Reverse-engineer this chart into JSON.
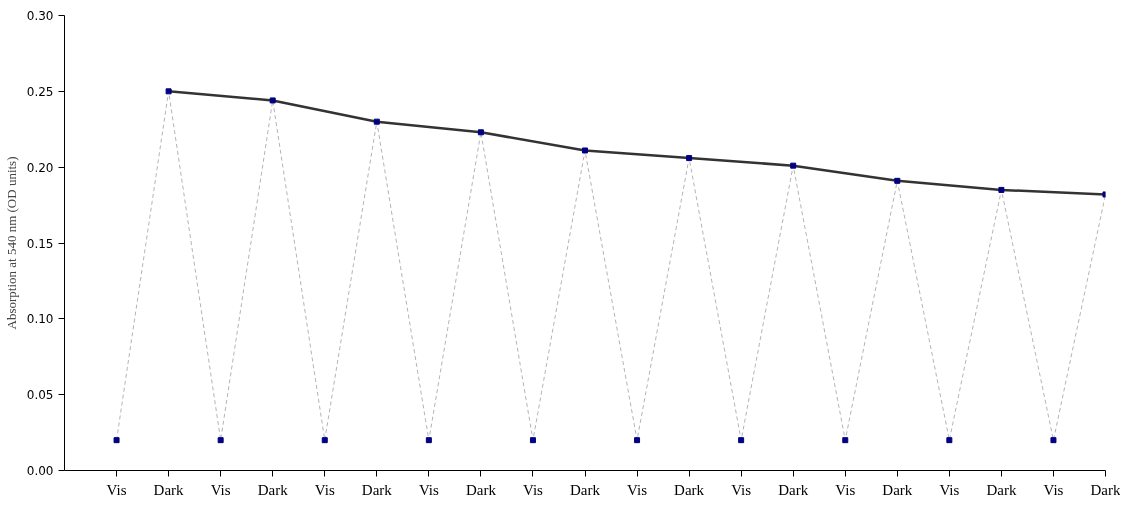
{
  "chart_data": {
    "type": "line",
    "ylabel": "Absorption at 540 nm (OD units)",
    "categories": [
      "Vis",
      "Dark",
      "Vis",
      "Dark",
      "Vis",
      "Dark",
      "Vis",
      "Dark",
      "Vis",
      "Dark",
      "Vis",
      "Dark",
      "Vis",
      "Dark",
      "Vis",
      "Dark",
      "Vis",
      "Dark",
      "Vis",
      "Dark"
    ],
    "ylim": [
      0,
      0.3
    ],
    "yticks": [
      {
        "value": 0,
        "label": "0.00"
      },
      {
        "value": 0.05,
        "label": "0.05"
      },
      {
        "value": 0.1,
        "label": "0.10"
      },
      {
        "value": 0.15,
        "label": "0.15"
      },
      {
        "value": 0.2,
        "label": "0.20"
      },
      {
        "value": 0.25,
        "label": "0.25"
      },
      {
        "value": 0.3,
        "label": "0.30"
      }
    ],
    "grid": false,
    "series": [
      {
        "color": "#b4b4b4",
        "line_style": "dashed",
        "marker": "none",
        "values": [
          0.02,
          0.25,
          0.02,
          0.244,
          0.02,
          0.23,
          0.02,
          0.223,
          0.02,
          0.211,
          0.02,
          0.206,
          0.02,
          0.201,
          0.02,
          0.191,
          0.02,
          0.185,
          0.02,
          0.182
        ]
      },
      {
        "color": "#333333",
        "line_style": "solid",
        "marker": "none",
        "values": [
          null,
          0.25,
          null,
          0.244,
          null,
          0.23,
          null,
          0.223,
          null,
          0.211,
          null,
          0.206,
          null,
          0.201,
          null,
          0.191,
          null,
          0.185,
          null,
          0.182
        ]
      },
      {
        "type": "scatter",
        "color": "#000080",
        "marker": "square",
        "values": [
          0.02,
          0.25,
          0.02,
          0.244,
          0.02,
          0.23,
          0.02,
          0.223,
          0.02,
          0.211,
          0.02,
          0.206,
          0.02,
          0.201,
          0.02,
          0.191,
          0.02,
          0.185,
          0.02,
          0.182
        ]
      }
    ]
  }
}
